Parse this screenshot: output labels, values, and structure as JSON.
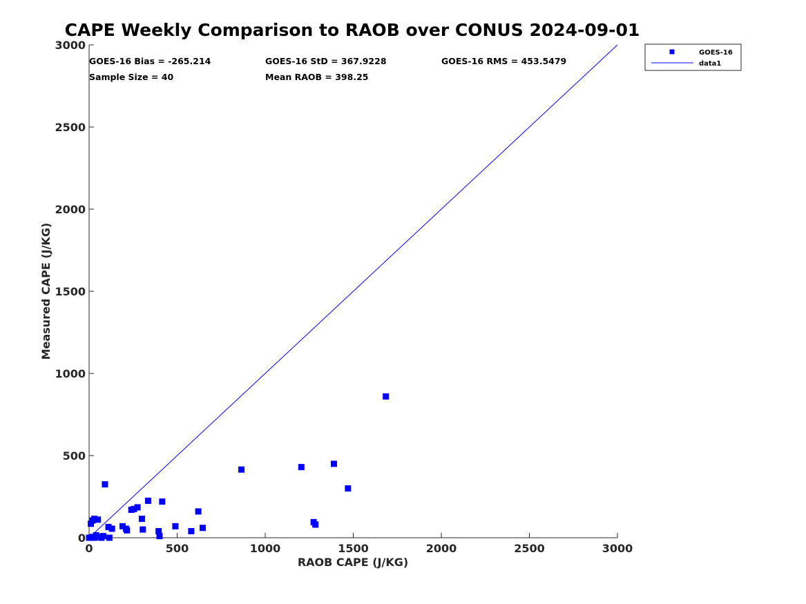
{
  "chart_data": {
    "type": "scatter",
    "title": "CAPE Weekly Comparison to RAOB over CONUS 2024-09-01",
    "xlabel": "RAOB CAPE (J/KG)",
    "ylabel": "Measured CAPE (J/KG)",
    "xlim": [
      0,
      3000
    ],
    "ylim": [
      0,
      3000
    ],
    "xticks": [
      "0",
      "500",
      "1000",
      "1500",
      "2000",
      "2500",
      "3000"
    ],
    "yticks": [
      "0",
      "500",
      "1000",
      "1500",
      "2000",
      "2500",
      "3000"
    ],
    "grid": false,
    "legend_position": "top-right-outside",
    "stats": {
      "bias": "GOES-16 Bias = -265.214",
      "std": "GOES-16 StD = 367.9228",
      "rms": "GOES-16 RMS = 453.5479",
      "sample_size": "Sample Size = 40",
      "mean_raob": "Mean RAOB = 398.25"
    },
    "series": [
      {
        "name": "GOES-16",
        "kind": "scatter",
        "color": "#0000ff",
        "marker": "square",
        "points": [
          [
            0,
            0
          ],
          [
            10,
            0
          ],
          [
            20,
            5
          ],
          [
            30,
            0
          ],
          [
            60,
            5
          ],
          [
            80,
            10
          ],
          [
            40,
            15
          ],
          [
            10,
            85
          ],
          [
            20,
            105
          ],
          [
            30,
            115
          ],
          [
            50,
            110
          ],
          [
            90,
            325
          ],
          [
            110,
            65
          ],
          [
            130,
            55
          ],
          [
            115,
            0
          ],
          [
            190,
            70
          ],
          [
            210,
            55
          ],
          [
            215,
            45
          ],
          [
            240,
            170
          ],
          [
            255,
            175
          ],
          [
            275,
            185
          ],
          [
            300,
            115
          ],
          [
            305,
            50
          ],
          [
            335,
            225
          ],
          [
            395,
            40
          ],
          [
            400,
            10
          ],
          [
            415,
            220
          ],
          [
            490,
            70
          ],
          [
            580,
            40
          ],
          [
            620,
            160
          ],
          [
            645,
            60
          ],
          [
            865,
            415
          ],
          [
            1205,
            430
          ],
          [
            1275,
            95
          ],
          [
            1285,
            80
          ],
          [
            1390,
            450
          ],
          [
            1470,
            300
          ],
          [
            1685,
            860
          ],
          [
            5,
            0
          ],
          [
            70,
            0
          ]
        ]
      },
      {
        "name": "data1",
        "kind": "line",
        "color": "#0000ff",
        "points": [
          [
            0,
            0
          ],
          [
            3000,
            3000
          ]
        ]
      }
    ]
  }
}
